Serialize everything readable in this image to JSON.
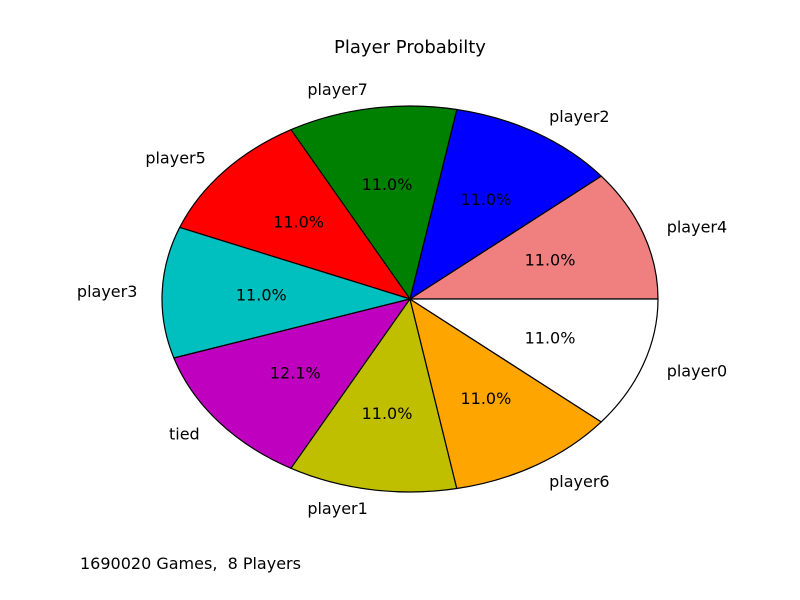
{
  "chart_data": {
    "type": "pie",
    "title": "Player Probabilty",
    "start_angle_deg": 0,
    "direction": "counterclockwise",
    "slices": [
      {
        "label": "player4",
        "value": 11.0,
        "pct_label": "11.0%",
        "color": "#f08080"
      },
      {
        "label": "player2",
        "value": 11.0,
        "pct_label": "11.0%",
        "color": "#0000ff"
      },
      {
        "label": "player7",
        "value": 11.0,
        "pct_label": "11.0%",
        "color": "#008000"
      },
      {
        "label": "player5",
        "value": 11.0,
        "pct_label": "11.0%",
        "color": "#ff0000"
      },
      {
        "label": "player3",
        "value": 11.0,
        "pct_label": "11.0%",
        "color": "#00bfbf"
      },
      {
        "label": "tied",
        "value": 12.1,
        "pct_label": "12.1%",
        "color": "#bf00bf"
      },
      {
        "label": "player1",
        "value": 11.0,
        "pct_label": "11.0%",
        "color": "#bfbf00"
      },
      {
        "label": "player6",
        "value": 11.0,
        "pct_label": "11.0%",
        "color": "#ffa500"
      },
      {
        "label": "player0",
        "value": 11.0,
        "pct_label": "11.0%",
        "color": "#ffffff"
      }
    ]
  },
  "footer": "1690020 Games,  8 Players"
}
